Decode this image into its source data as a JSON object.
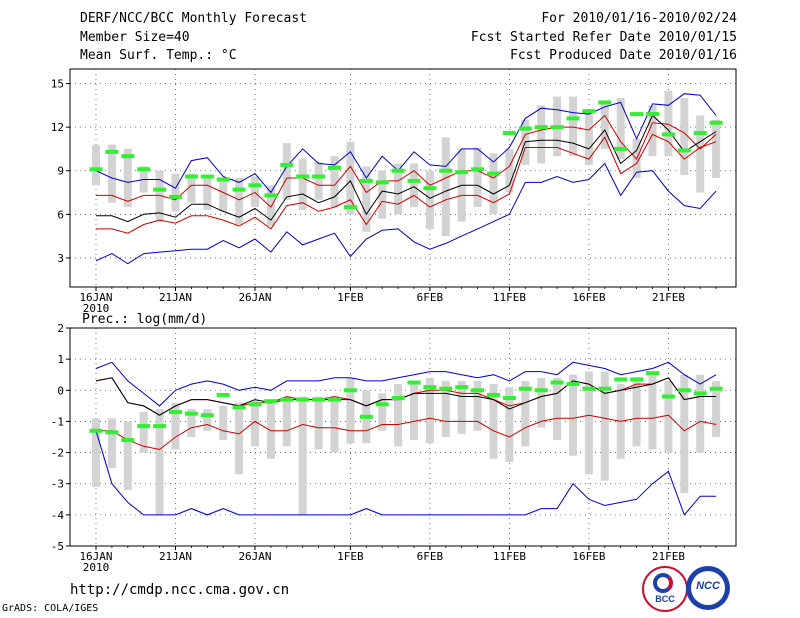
{
  "header": {
    "title": "DERF/NCC/BCC Monthly Forecast",
    "member_size": "Member Size=40",
    "variable": "Mean Surf. Temp.: °C",
    "period": "For 2010/01/16-2010/02/24",
    "started": "Fcst Started Refer Date 2010/01/15",
    "produced": "Fcst Produced Date 2010/01/16"
  },
  "footer": {
    "url": "http://cmdp.ncc.cma.gov.cn",
    "credit": "GrADS: COLA/IGES",
    "logo_left": "BCC",
    "logo_right": "NCC"
  },
  "colors": {
    "max_line": "#0000cc",
    "min_line": "#0000cc",
    "p_hi_line": "#cc0000",
    "p_lo_line": "#cc0000",
    "mean_line": "#000000",
    "box": "#d3d3d3",
    "marker": "#33ee33"
  },
  "chart_data": [
    {
      "type": "line",
      "title": "Mean Surf. Temp.: °C",
      "ylim": [
        1,
        16
      ],
      "yticks": [
        3,
        6,
        9,
        12,
        15
      ],
      "day_count": 40,
      "xticks": [
        {
          "day": 0,
          "label": "16JAN",
          "sub": "2010"
        },
        {
          "day": 5,
          "label": "21JAN",
          "sub": ""
        },
        {
          "day": 10,
          "label": "26JAN",
          "sub": ""
        },
        {
          "day": 16,
          "label": "1FEB",
          "sub": ""
        },
        {
          "day": 21,
          "label": "6FEB",
          "sub": ""
        },
        {
          "day": 26,
          "label": "11FEB",
          "sub": ""
        },
        {
          "day": 31,
          "label": "16FEB",
          "sub": ""
        },
        {
          "day": 36,
          "label": "21FEB",
          "sub": ""
        }
      ],
      "series": [
        {
          "name": "max",
          "values": [
            9.0,
            8.5,
            8.2,
            8.4,
            8.4,
            7.8,
            9.7,
            9.9,
            8.6,
            8.2,
            8.8,
            7.5,
            9.3,
            10.5,
            9.5,
            9.4,
            10.3,
            8.5,
            10.0,
            9.0,
            10.3,
            9.4,
            9.3,
            10.5,
            10.5,
            9.6,
            10.6,
            12.6,
            13.3,
            13.2,
            13.0,
            12.9,
            13.4,
            13.7,
            11.2,
            13.6,
            13.5,
            14.3,
            14.2,
            12.8
          ]
        },
        {
          "name": "p_hi",
          "values": [
            7.3,
            7.3,
            6.9,
            7.3,
            7.3,
            7.0,
            8.0,
            8.0,
            7.5,
            7.0,
            7.5,
            6.5,
            8.5,
            8.5,
            8.0,
            8.0,
            9.3,
            7.5,
            8.3,
            8.3,
            9.0,
            8.0,
            8.5,
            9.0,
            9.0,
            8.5,
            9.3,
            11.5,
            11.8,
            12.0,
            12.0,
            11.8,
            12.8,
            11.0,
            9.8,
            12.3,
            12.2,
            11.6,
            10.5,
            11.5
          ]
        },
        {
          "name": "mean",
          "values": [
            5.9,
            5.9,
            5.5,
            6.0,
            6.1,
            5.8,
            6.7,
            6.7,
            6.2,
            5.8,
            6.4,
            5.6,
            7.2,
            7.4,
            6.8,
            7.2,
            8.3,
            6.0,
            7.6,
            7.4,
            7.9,
            7.1,
            7.6,
            8.0,
            8.0,
            7.4,
            8.0,
            11.0,
            11.1,
            11.1,
            10.9,
            10.5,
            11.8,
            9.5,
            10.4,
            12.8,
            11.8,
            10.3,
            11.0,
            11.7
          ]
        },
        {
          "name": "p_lo",
          "values": [
            5.0,
            5.0,
            4.7,
            5.3,
            5.6,
            5.4,
            5.9,
            5.9,
            5.6,
            5.2,
            5.8,
            5.0,
            6.6,
            6.8,
            6.2,
            6.5,
            7.0,
            5.3,
            6.9,
            6.7,
            7.3,
            6.5,
            7.0,
            7.3,
            7.3,
            6.8,
            7.4,
            10.6,
            10.6,
            10.6,
            10.2,
            9.8,
            11.3,
            8.8,
            9.5,
            11.5,
            11.0,
            9.8,
            10.6,
            11.0
          ]
        },
        {
          "name": "min",
          "values": [
            2.8,
            3.3,
            2.6,
            3.3,
            3.4,
            3.5,
            3.6,
            3.6,
            4.2,
            3.7,
            4.3,
            3.4,
            4.8,
            3.9,
            4.3,
            4.7,
            3.1,
            4.3,
            4.9,
            5.0,
            4.1,
            3.6,
            4.0,
            4.5,
            5.0,
            5.5,
            6.0,
            8.2,
            8.2,
            8.6,
            8.2,
            8.4,
            9.5,
            7.3,
            8.9,
            9.0,
            7.6,
            6.6,
            6.4,
            7.6
          ]
        },
        {
          "name": "box_low",
          "values": [
            8.0,
            6.8,
            6.5,
            7.5,
            5.5,
            6.2,
            6.8,
            6.3,
            6.2,
            5.3,
            6.5,
            5.2,
            7.0,
            6.3,
            7.0,
            6.5,
            6.0,
            4.8,
            5.7,
            6.0,
            6.5,
            5.0,
            4.5,
            5.5,
            6.5,
            6.0,
            7.5,
            9.4,
            9.5,
            10.0,
            10.0,
            9.4,
            10.5,
            9.8,
            8.5,
            10.0,
            10.0,
            8.7,
            7.5,
            8.5
          ]
        },
        {
          "name": "box_high",
          "values": [
            10.8,
            10.8,
            10.5,
            9.3,
            9.0,
            8.8,
            8.8,
            8.6,
            8.5,
            8.5,
            8.6,
            8.0,
            10.9,
            9.8,
            9.6,
            10.0,
            11.0,
            9.3,
            9.0,
            9.5,
            9.5,
            9.0,
            11.3,
            10.5,
            10.6,
            10.2,
            10.5,
            12.5,
            13.5,
            14.1,
            14.1,
            13.0,
            13.8,
            14.0,
            11.2,
            13.5,
            14.5,
            14.0,
            12.8,
            12.5
          ]
        },
        {
          "name": "marker",
          "values": [
            9.1,
            10.3,
            10.0,
            9.1,
            7.7,
            7.2,
            8.6,
            8.6,
            8.4,
            7.7,
            8.0,
            7.3,
            9.4,
            8.6,
            8.6,
            9.2,
            6.5,
            8.3,
            8.2,
            9.0,
            8.3,
            7.8,
            9.0,
            8.9,
            9.1,
            8.8,
            11.6,
            11.9,
            12.0,
            12.0,
            12.6,
            13.1,
            13.7,
            10.5,
            12.9,
            12.9,
            11.5,
            10.4,
            11.6,
            12.3
          ]
        }
      ]
    },
    {
      "type": "line",
      "title": "Prec.: log(mm/d)",
      "ylim": [
        -5,
        2
      ],
      "yticks": [
        -5,
        -4,
        -3,
        -2,
        -1,
        0,
        1,
        2
      ],
      "day_count": 40,
      "xticks": [
        {
          "day": 0,
          "label": "16JAN",
          "sub": "2010"
        },
        {
          "day": 5,
          "label": "21JAN",
          "sub": ""
        },
        {
          "day": 10,
          "label": "26JAN",
          "sub": ""
        },
        {
          "day": 16,
          "label": "1FEB",
          "sub": ""
        },
        {
          "day": 21,
          "label": "6FEB",
          "sub": ""
        },
        {
          "day": 26,
          "label": "11FEB",
          "sub": ""
        },
        {
          "day": 31,
          "label": "16FEB",
          "sub": ""
        },
        {
          "day": 36,
          "label": "21FEB",
          "sub": ""
        }
      ],
      "series": [
        {
          "name": "max",
          "values": [
            0.7,
            0.9,
            0.3,
            -0.1,
            -0.5,
            0.0,
            0.2,
            0.3,
            0.2,
            0.0,
            0.1,
            0.0,
            0.3,
            0.3,
            0.3,
            0.4,
            0.4,
            0.3,
            0.3,
            0.4,
            0.5,
            0.6,
            0.6,
            0.5,
            0.4,
            0.5,
            0.3,
            0.6,
            0.6,
            0.5,
            0.9,
            0.8,
            0.7,
            0.5,
            0.6,
            0.7,
            0.9,
            0.5,
            0.2,
            0.5
          ]
        },
        {
          "name": "p_hi",
          "values": [
            0.3,
            0.4,
            -0.4,
            -0.5,
            -0.8,
            -0.5,
            -0.3,
            -0.3,
            -0.4,
            -0.5,
            -0.4,
            -0.4,
            -0.2,
            -0.3,
            -0.3,
            -0.2,
            -0.3,
            -0.5,
            -0.3,
            -0.3,
            -0.1,
            0.0,
            0.0,
            -0.1,
            -0.1,
            -0.3,
            -0.5,
            -0.4,
            -0.2,
            -0.1,
            0.3,
            0.2,
            -0.1,
            0.0,
            0.2,
            0.2,
            0.4,
            -0.3,
            -0.2,
            -0.2
          ]
        },
        {
          "name": "mean",
          "values": [
            0.3,
            0.4,
            -0.4,
            -0.5,
            -0.8,
            -0.5,
            -0.3,
            -0.3,
            -0.4,
            -0.5,
            -0.3,
            -0.4,
            -0.3,
            -0.3,
            -0.3,
            -0.3,
            -0.3,
            -0.5,
            -0.3,
            -0.3,
            -0.1,
            -0.1,
            -0.1,
            -0.2,
            -0.2,
            -0.3,
            -0.6,
            -0.4,
            -0.2,
            -0.1,
            0.3,
            0.2,
            -0.1,
            0.0,
            0.1,
            0.2,
            0.4,
            -0.3,
            -0.2,
            -0.2
          ]
        },
        {
          "name": "p_lo",
          "values": [
            -1.3,
            -1.3,
            -1.6,
            -1.8,
            -1.9,
            -1.5,
            -1.2,
            -1.1,
            -1.3,
            -1.4,
            -1.0,
            -1.3,
            -1.3,
            -1.1,
            -1.2,
            -1.2,
            -1.3,
            -1.3,
            -1.1,
            -1.1,
            -1.0,
            -0.9,
            -1.0,
            -1.0,
            -1.0,
            -1.3,
            -1.5,
            -1.2,
            -1.0,
            -0.9,
            -0.9,
            -0.8,
            -0.9,
            -1.0,
            -0.9,
            -0.9,
            -0.8,
            -1.3,
            -1.0,
            -1.1
          ]
        },
        {
          "name": "min",
          "values": [
            -1.3,
            -3.0,
            -3.6,
            -4.0,
            -4.0,
            -4.0,
            -3.8,
            -4.0,
            -3.8,
            -4.0,
            -4.0,
            -4.0,
            -4.0,
            -4.0,
            -4.0,
            -4.0,
            -4.0,
            -3.8,
            -4.0,
            -4.0,
            -4.0,
            -4.0,
            -4.0,
            -4.0,
            -4.0,
            -4.0,
            -4.0,
            -4.0,
            -3.8,
            -3.8,
            -3.0,
            -3.5,
            -3.7,
            -3.6,
            -3.5,
            -3.0,
            -2.6,
            -4.0,
            -3.4,
            -3.4
          ]
        },
        {
          "name": "box_low",
          "values": [
            -3.1,
            -2.5,
            -3.2,
            -2.0,
            -4.0,
            -1.9,
            -1.5,
            -1.3,
            -1.6,
            -2.7,
            -1.8,
            -2.2,
            -1.8,
            -4.0,
            -1.9,
            -2.0,
            -1.7,
            -1.7,
            -1.3,
            -1.8,
            -1.6,
            -1.7,
            -1.5,
            -1.4,
            -1.3,
            -2.2,
            -2.3,
            -1.8,
            -1.2,
            -1.6,
            -2.1,
            -2.7,
            -2.9,
            -2.2,
            -1.8,
            -1.9,
            -2.0,
            -3.3,
            -2.0,
            -1.5
          ]
        },
        {
          "name": "box_high",
          "values": [
            -0.9,
            -0.9,
            -1.0,
            -0.7,
            -0.6,
            -0.4,
            -0.6,
            -0.6,
            -0.5,
            -0.4,
            -0.3,
            -0.3,
            -0.2,
            -0.2,
            -0.2,
            -0.2,
            0.4,
            0.0,
            -0.1,
            0.2,
            0.3,
            0.4,
            0.3,
            0.3,
            0.3,
            0.2,
            0.1,
            0.3,
            0.4,
            0.4,
            0.5,
            0.6,
            0.6,
            0.2,
            0.4,
            0.5,
            0.3,
            0.5,
            0.5,
            0.3
          ]
        },
        {
          "name": "marker",
          "values": [
            -1.3,
            -1.35,
            -1.6,
            -1.15,
            -1.15,
            -0.7,
            -0.75,
            -0.8,
            -0.15,
            -0.55,
            -0.45,
            -0.35,
            -0.3,
            -0.3,
            -0.3,
            -0.3,
            0.0,
            -0.85,
            -0.45,
            -0.25,
            0.25,
            0.1,
            0.05,
            0.1,
            0.0,
            -0.15,
            -0.25,
            0.05,
            0.0,
            0.25,
            0.2,
            0.05,
            0.05,
            0.35,
            0.35,
            0.55,
            -0.2,
            0.0,
            -0.1,
            0.05
          ]
        }
      ]
    }
  ]
}
